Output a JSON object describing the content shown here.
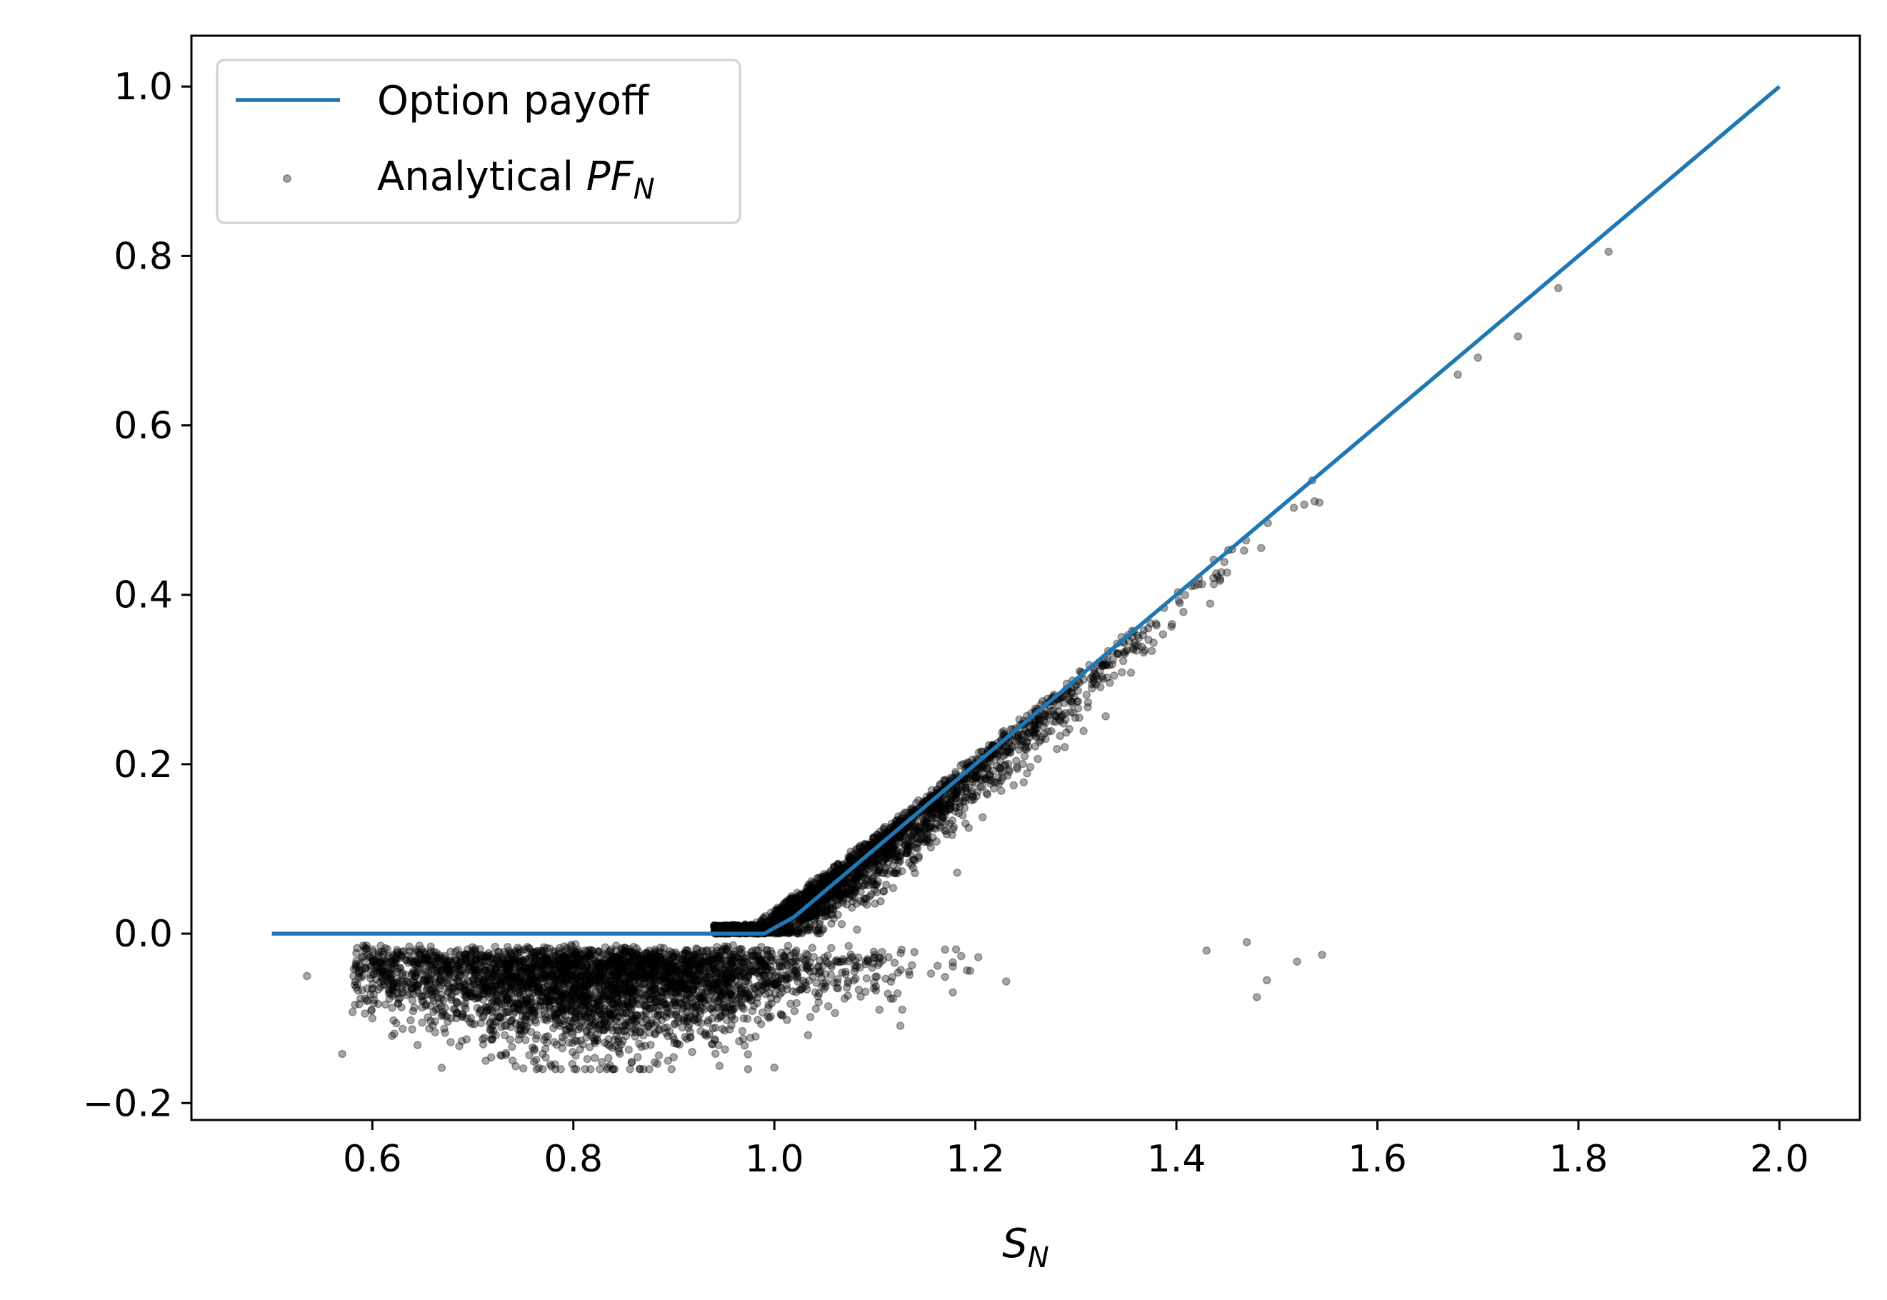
{
  "chart_data": {
    "type": "scatter",
    "x_range": [
      0.42,
      2.08
    ],
    "y_range": [
      -0.22,
      1.06
    ],
    "x_ticks": [
      {
        "value": 0.6,
        "label": "0.6"
      },
      {
        "value": 0.8,
        "label": "0.8"
      },
      {
        "value": 1.0,
        "label": "1.0"
      },
      {
        "value": 1.2,
        "label": "1.2"
      },
      {
        "value": 1.4,
        "label": "1.4"
      },
      {
        "value": 1.6,
        "label": "1.6"
      },
      {
        "value": 1.8,
        "label": "1.8"
      },
      {
        "value": 2.0,
        "label": "2.0"
      }
    ],
    "y_ticks": [
      {
        "value": -0.2,
        "label": "−0.2"
      },
      {
        "value": 0.0,
        "label": "0.0"
      },
      {
        "value": 0.2,
        "label": "0.2"
      },
      {
        "value": 0.4,
        "label": "0.4"
      },
      {
        "value": 0.6,
        "label": "0.6"
      },
      {
        "value": 0.8,
        "label": "0.8"
      },
      {
        "value": 1.0,
        "label": "1.0"
      }
    ],
    "xlabel": {
      "main": "S",
      "sub": "N"
    },
    "ylabel": "",
    "grid": false,
    "legend_position": "top-left",
    "legend": {
      "line_label": "Option payoff",
      "scatter_label_prefix": "Analytical ",
      "scatter_label_main": "PF",
      "scatter_label_sub": "N"
    },
    "series": [
      {
        "name": "Option payoff",
        "kind": "line",
        "color": "#1f77b4",
        "x": [
          0.5,
          0.99,
          1.02,
          1.1,
          1.2,
          1.4,
          1.6,
          1.8,
          2.0
        ],
        "y": [
          0.0,
          0.0,
          0.02,
          0.1,
          0.2,
          0.4,
          0.6,
          0.8,
          1.0
        ]
      },
      {
        "name": "Analytical PF_N",
        "kind": "scatter",
        "color": "#000000",
        "opacity": 0.35,
        "upper_branch_x_range": [
          0.94,
          1.66
        ],
        "lower_branch_x_range": [
          0.58,
          1.4
        ],
        "lower_branch_min_y": -0.16,
        "outliers": [
          {
            "x": 1.68,
            "y": 0.66
          },
          {
            "x": 1.7,
            "y": 0.68
          },
          {
            "x": 1.74,
            "y": 0.705
          },
          {
            "x": 1.78,
            "y": 0.762
          },
          {
            "x": 1.83,
            "y": 0.805
          },
          {
            "x": 1.43,
            "y": -0.02
          },
          {
            "x": 1.47,
            "y": -0.01
          },
          {
            "x": 1.48,
            "y": -0.075
          },
          {
            "x": 1.49,
            "y": -0.055
          },
          {
            "x": 1.52,
            "y": -0.033
          },
          {
            "x": 1.545,
            "y": -0.025
          },
          {
            "x": 0.535,
            "y": -0.05
          },
          {
            "x": 0.57,
            "y": -0.142
          },
          {
            "x": 0.6,
            "y": -0.1
          }
        ]
      }
    ]
  }
}
